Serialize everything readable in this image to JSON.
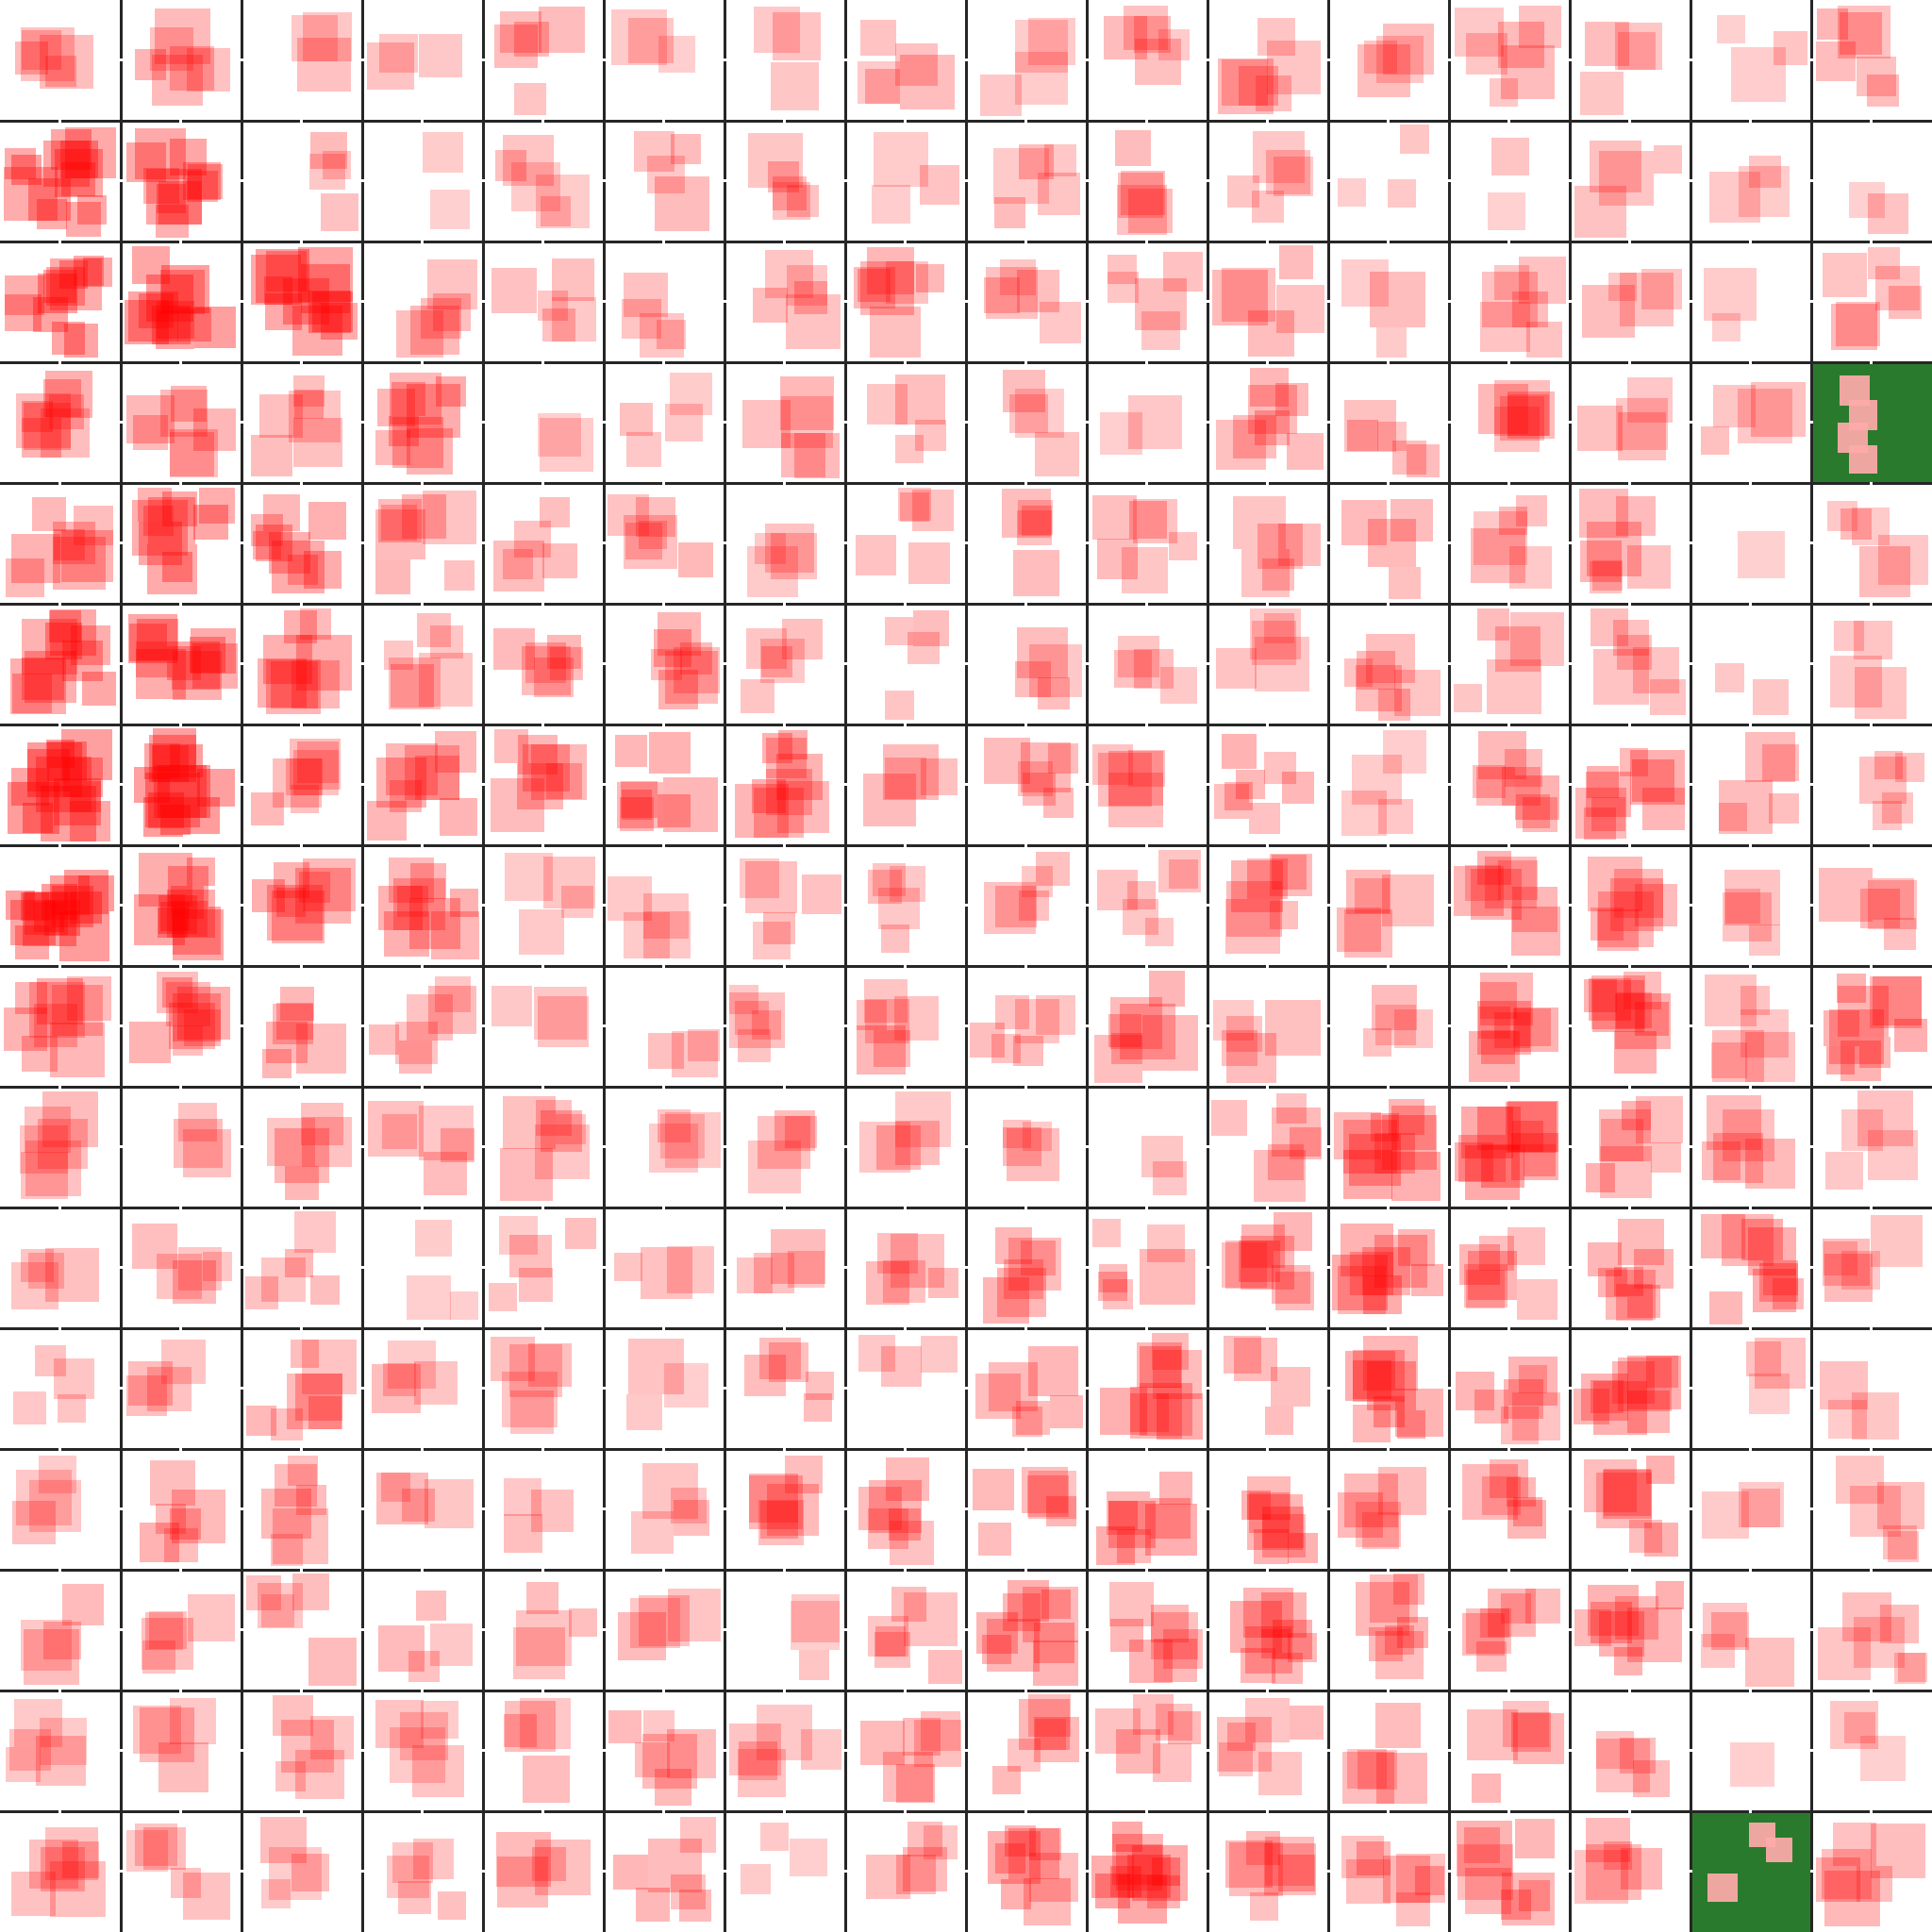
{
  "board": {
    "rows": 16,
    "cols": 16,
    "background_color": "#ffffff",
    "grid_color": "#262626",
    "heat_color": "#ff0000",
    "goal_color": "#2a7a2e",
    "goal_cells": [
      {
        "row": 3,
        "col": 15
      },
      {
        "row": 15,
        "col": 14
      }
    ],
    "heat": [
      [
        0.3,
        0.4,
        0.15,
        0.2,
        0.25,
        0.1,
        0.15,
        0.25,
        0.2,
        0.25,
        0.3,
        0.25,
        0.3,
        0.25,
        0.1,
        0.4
      ],
      [
        0.85,
        0.7,
        0.3,
        0.05,
        0.2,
        0.25,
        0.3,
        0.2,
        0.25,
        0.3,
        0.25,
        0.15,
        0.1,
        0.2,
        0.2,
        0.1
      ],
      [
        0.8,
        0.85,
        0.85,
        0.35,
        0.25,
        0.25,
        0.3,
        0.35,
        0.3,
        0.3,
        0.3,
        0.2,
        0.3,
        0.2,
        0.1,
        0.3
      ],
      [
        0.5,
        0.45,
        0.35,
        0.6,
        0.15,
        0.2,
        0.3,
        0.25,
        0.2,
        0.1,
        0.35,
        0.3,
        0.35,
        0.2,
        0.2,
        0.0
      ],
      [
        0.5,
        0.7,
        0.6,
        0.35,
        0.3,
        0.35,
        0.25,
        0.25,
        0.3,
        0.3,
        0.25,
        0.3,
        0.25,
        0.35,
        0.05,
        0.25
      ],
      [
        0.75,
        0.75,
        0.55,
        0.35,
        0.4,
        0.45,
        0.3,
        0.3,
        0.3,
        0.2,
        0.25,
        0.35,
        0.25,
        0.35,
        0.1,
        0.2
      ],
      [
        0.95,
        0.95,
        0.4,
        0.55,
        0.45,
        0.55,
        0.55,
        0.3,
        0.35,
        0.3,
        0.45,
        0.15,
        0.5,
        0.55,
        0.3,
        0.25
      ],
      [
        0.95,
        0.75,
        0.55,
        0.55,
        0.25,
        0.25,
        0.25,
        0.3,
        0.25,
        0.3,
        0.45,
        0.3,
        0.45,
        0.4,
        0.3,
        0.3
      ],
      [
        0.55,
        0.5,
        0.45,
        0.35,
        0.15,
        0.2,
        0.3,
        0.35,
        0.35,
        0.4,
        0.25,
        0.25,
        0.55,
        0.5,
        0.3,
        0.55
      ],
      [
        0.3,
        0.2,
        0.35,
        0.3,
        0.3,
        0.2,
        0.25,
        0.25,
        0.25,
        0.05,
        0.45,
        0.6,
        0.65,
        0.45,
        0.35,
        0.2
      ],
      [
        0.25,
        0.3,
        0.3,
        0.15,
        0.2,
        0.15,
        0.25,
        0.25,
        0.4,
        0.35,
        0.4,
        0.6,
        0.4,
        0.5,
        0.55,
        0.25
      ],
      [
        0.25,
        0.3,
        0.4,
        0.25,
        0.3,
        0.15,
        0.25,
        0.2,
        0.35,
        0.55,
        0.25,
        0.55,
        0.4,
        0.55,
        0.15,
        0.15
      ],
      [
        0.2,
        0.45,
        0.3,
        0.25,
        0.2,
        0.2,
        0.3,
        0.45,
        0.4,
        0.55,
        0.5,
        0.35,
        0.4,
        0.5,
        0.2,
        0.25
      ],
      [
        0.25,
        0.35,
        0.25,
        0.3,
        0.25,
        0.25,
        0.15,
        0.3,
        0.55,
        0.4,
        0.55,
        0.45,
        0.35,
        0.55,
        0.2,
        0.3
      ],
      [
        0.25,
        0.25,
        0.25,
        0.25,
        0.25,
        0.3,
        0.3,
        0.35,
        0.35,
        0.4,
        0.35,
        0.3,
        0.35,
        0.25,
        0.05,
        0.1
      ],
      [
        0.35,
        0.25,
        0.2,
        0.25,
        0.3,
        0.35,
        0.15,
        0.25,
        0.5,
        0.7,
        0.4,
        0.4,
        0.45,
        0.35,
        0.0,
        0.35
      ]
    ]
  }
}
